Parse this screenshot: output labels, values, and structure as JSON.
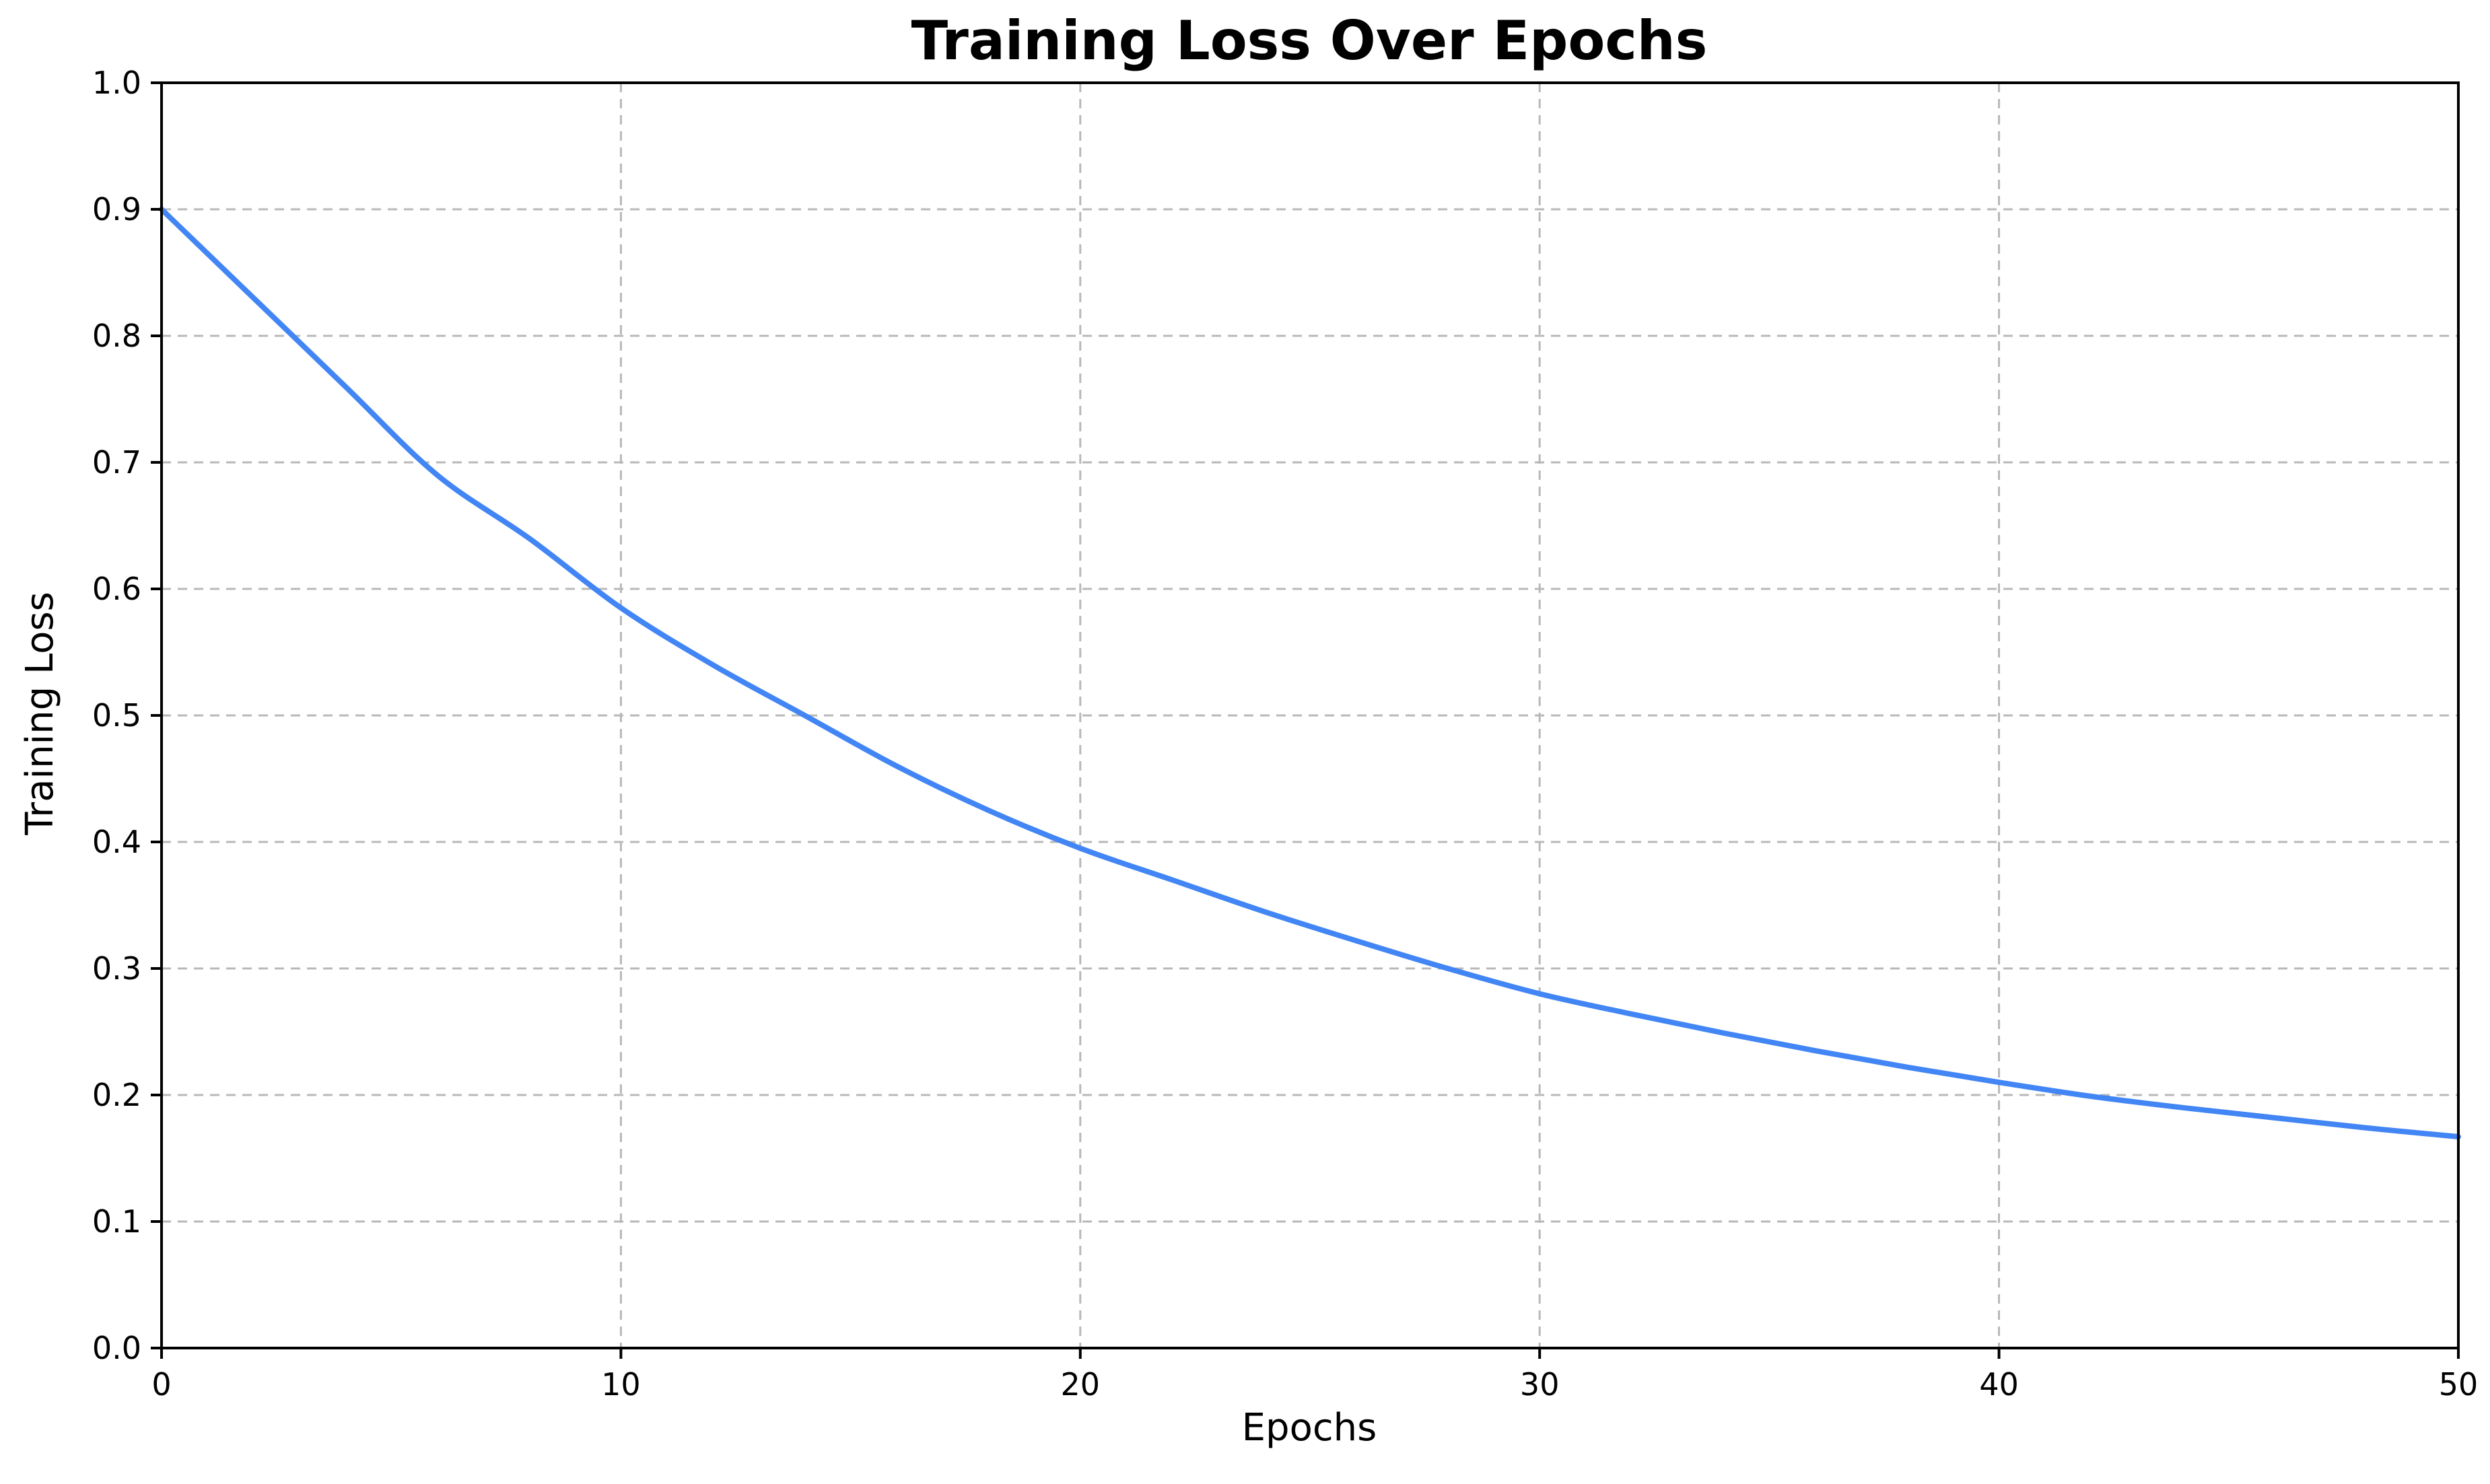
{
  "chart_data": {
    "type": "line",
    "title": "Training Loss Over Epochs",
    "xlabel": "Epochs",
    "ylabel": "Training Loss",
    "xlim": [
      0,
      50
    ],
    "ylim": [
      0.0,
      1.0
    ],
    "xticks": [
      "0",
      "10",
      "20",
      "30",
      "40",
      "50"
    ],
    "yticks": [
      "0.0",
      "0.1",
      "0.2",
      "0.3",
      "0.4",
      "0.5",
      "0.6",
      "0.7",
      "0.8",
      "0.9",
      "1.0"
    ],
    "grid": true,
    "legend": "none",
    "series": [
      {
        "color": "#4285F4",
        "x": [
          0,
          2,
          4,
          6,
          8,
          10,
          12,
          14,
          16,
          18,
          20,
          22,
          24,
          26,
          28,
          30,
          32,
          34,
          36,
          38,
          40,
          42,
          44,
          46,
          48,
          50
        ],
        "values": [
          0.9,
          0.83,
          0.76,
          0.69,
          0.64,
          0.585,
          0.54,
          0.5,
          0.46,
          0.425,
          0.395,
          0.37,
          0.345,
          0.322,
          0.3,
          0.28,
          0.264,
          0.249,
          0.235,
          0.222,
          0.21,
          0.199,
          0.19,
          0.182,
          0.174,
          0.167
        ]
      }
    ]
  }
}
